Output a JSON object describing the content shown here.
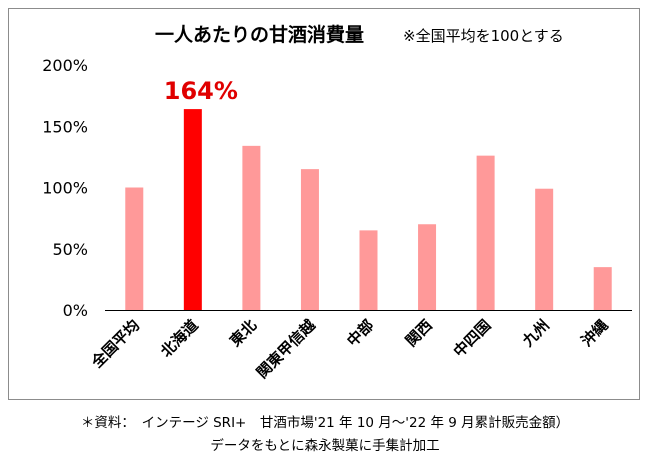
{
  "chart_data": {
    "type": "bar",
    "title": "一人あたりの甘酒消費量",
    "subtitle": "※全国平均を100とする",
    "categories": [
      "全国平均",
      "北海道",
      "東北",
      "関東甲信越",
      "中部",
      "関西",
      "中四国",
      "九州",
      "沖縄"
    ],
    "values": [
      100,
      164,
      134,
      115,
      65,
      70,
      126,
      99,
      35
    ],
    "highlight_index": 1,
    "highlight_label": "164%",
    "ylim": [
      0,
      200
    ],
    "yticks": [
      "0%",
      "50%",
      "100%",
      "150%",
      "200%"
    ],
    "ytick_values": [
      0,
      50,
      100,
      150,
      200
    ],
    "grid": false,
    "colors": {
      "bar": "#ff9999",
      "highlight": "#ff0000",
      "highlight_text": "#e00000",
      "axis": "#000000"
    }
  },
  "source": {
    "line1": "＊資料：　インテージ SRI+　甘酒市場'21 年 10 月～'22 年 9 月累計販売金額）",
    "line2": "データをもとに森永製菓に手集計加工"
  }
}
